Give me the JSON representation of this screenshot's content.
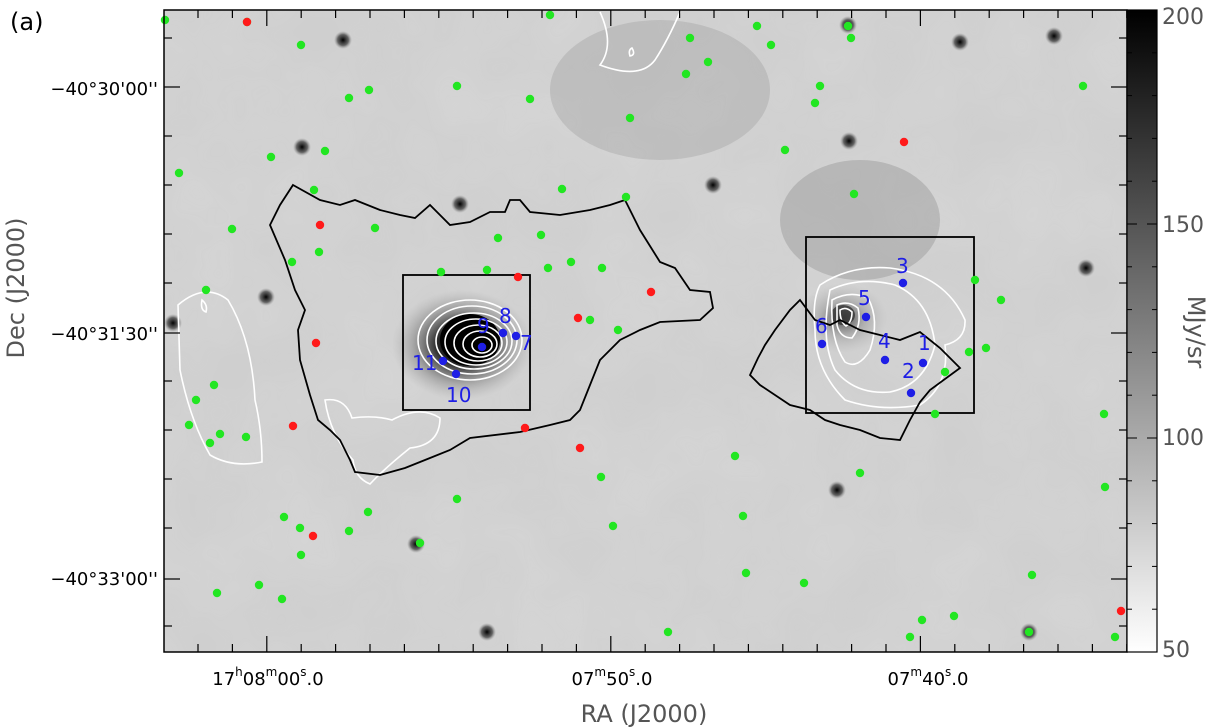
{
  "panel_label": "(a)",
  "axes": {
    "xlabel": "RA (J2000)",
    "ylabel": "Dec (J2000)",
    "ra_ticks": [
      {
        "hms": "17h08m00s.0",
        "parts": [
          "17",
          "h",
          "08",
          "m",
          "00",
          "s",
          ".0"
        ]
      },
      {
        "hms": "07m50s.0",
        "parts": [
          "",
          "",
          "07",
          "m",
          "50",
          "s",
          ".0"
        ]
      },
      {
        "hms": "07m40s.0",
        "parts": [
          "",
          "",
          "07",
          "m",
          "40",
          "s",
          ".0"
        ]
      }
    ],
    "dec_ticks": [
      "−40°30'00''",
      "−40°31'30''",
      "−40°33'00''"
    ]
  },
  "colorbar": {
    "label": "MJy/sr",
    "ticks": [
      "200",
      "150",
      "100",
      "50"
    ],
    "range": [
      50,
      200
    ],
    "colormap": "grayscale (white low, black high)"
  },
  "source_labels": [
    "1",
    "2",
    "3",
    "4",
    "5",
    "6",
    "7",
    "8",
    "9",
    "10",
    "11"
  ],
  "colors": {
    "green_markers": "#22e622",
    "red_markers": "#ff1a1a",
    "blue_markers": "#1e1ee6",
    "contours_white": "#ffffff",
    "outline_black": "#000000"
  }
}
